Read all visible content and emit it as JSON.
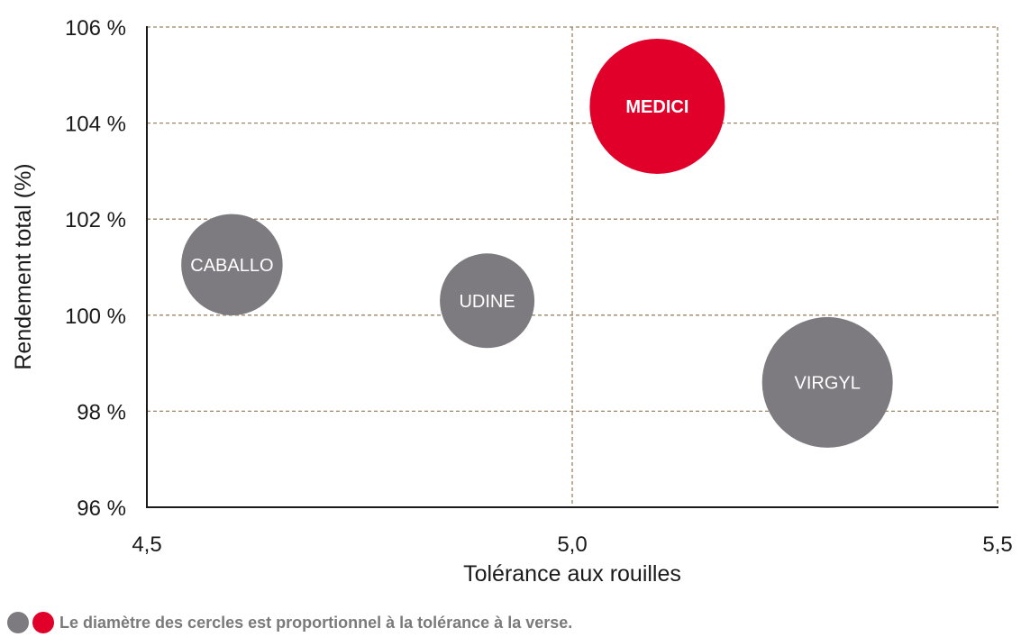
{
  "chart_data": {
    "type": "bubble",
    "xlabel": "Tolérance aux rouilles",
    "ylabel": "Rendement total (%)",
    "xlim": [
      4.5,
      5.5
    ],
    "ylim": [
      96,
      106
    ],
    "x_ticks": [
      {
        "value": 4.5,
        "label": "4,5"
      },
      {
        "value": 5.0,
        "label": "5,0"
      },
      {
        "value": 5.5,
        "label": "5,5"
      }
    ],
    "y_ticks": [
      {
        "value": 96,
        "label": "96 %"
      },
      {
        "value": 98,
        "label": "98 %"
      },
      {
        "value": 100,
        "label": "100 %"
      },
      {
        "value": 102,
        "label": "102 %"
      },
      {
        "value": 104,
        "label": "104 %"
      },
      {
        "value": 106,
        "label": "106 %"
      }
    ],
    "grid": true,
    "points": [
      {
        "name": "MEDICI",
        "x": 5.1,
        "y": 104.35,
        "size": 6.0,
        "highlight": true
      },
      {
        "name": "CABALLO",
        "x": 4.6,
        "y": 101.05,
        "size": 4.5,
        "highlight": false
      },
      {
        "name": "UDINE",
        "x": 4.9,
        "y": 100.3,
        "size": 4.2,
        "highlight": false
      },
      {
        "name": "VIRGYL",
        "x": 5.3,
        "y": 98.6,
        "size": 5.8,
        "highlight": false
      }
    ],
    "size_meaning": "tolérance à la verse"
  },
  "colors": {
    "highlight": "#e0002a",
    "default": "#7d7b80",
    "grid": "#9c8468",
    "axis": "#1a1a1a"
  },
  "footnote": {
    "text": "Le diamètre des cercles est proportionnel à la tolérance à la verse."
  }
}
